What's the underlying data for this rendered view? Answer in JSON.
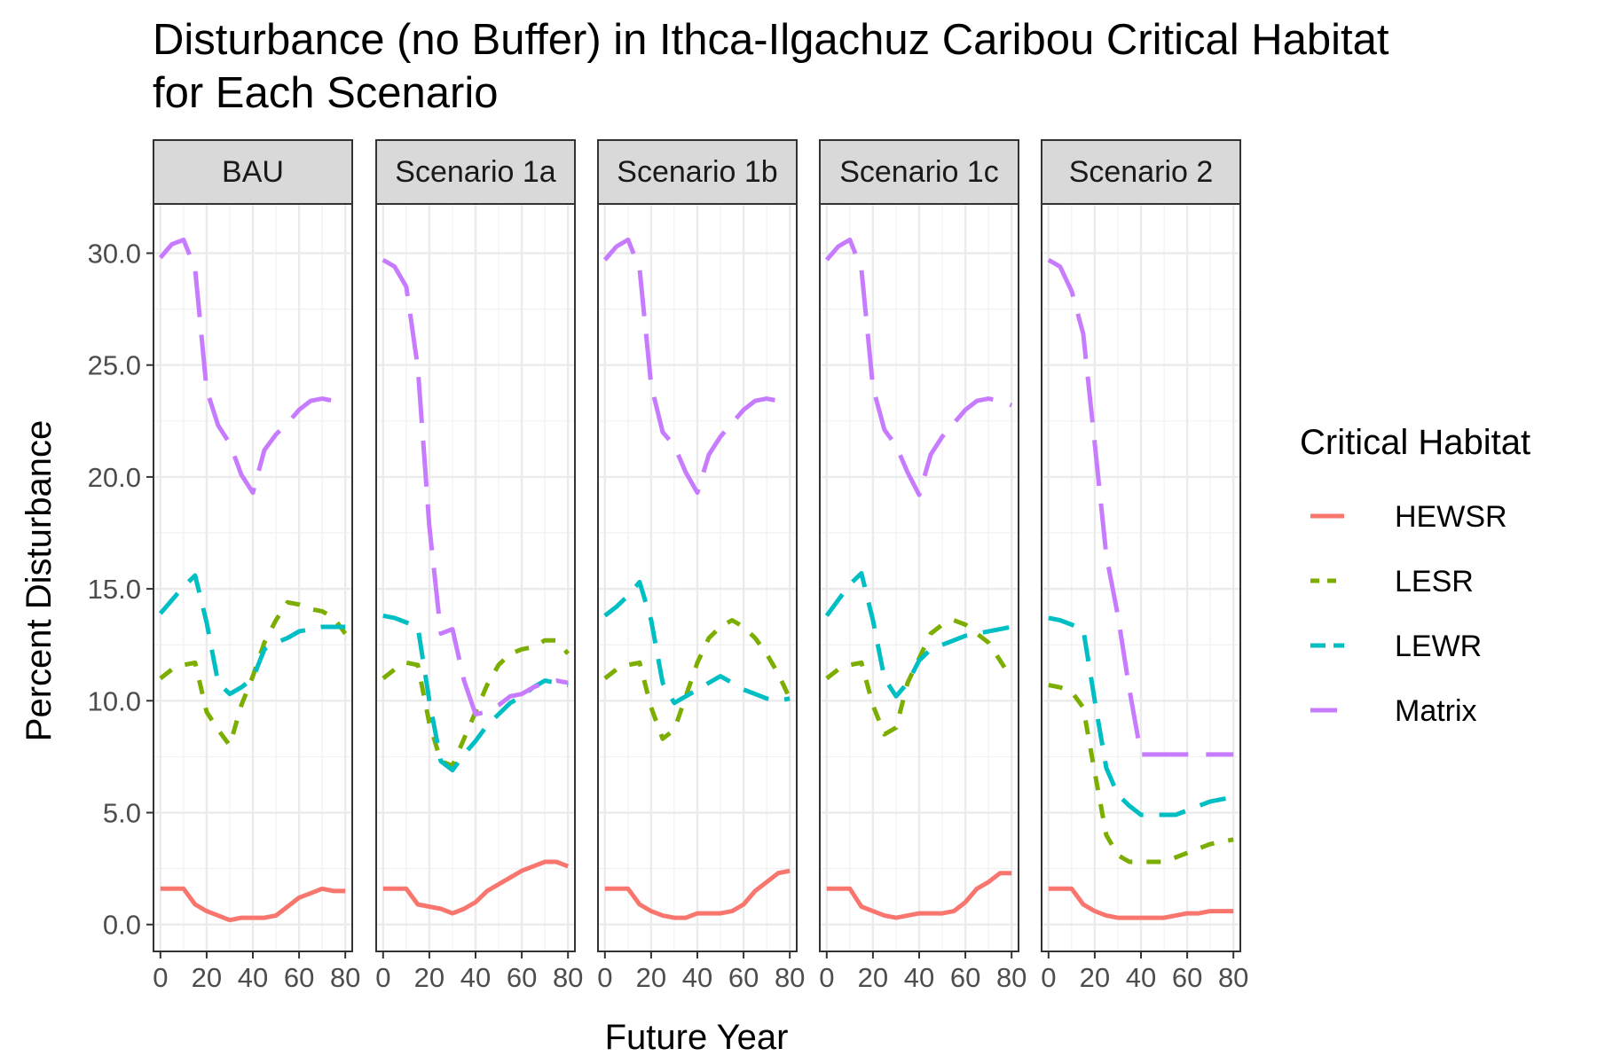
{
  "chart_data": {
    "type": "line",
    "title_line1": "Disturbance (no Buffer) in Ithca-Ilgachuz Caribou Critical Habitat",
    "title_line2": "for Each Scenario",
    "xlabel": "Future Year",
    "ylabel": "Percent Disturbance",
    "xlim": [
      -3,
      83
    ],
    "ylim": [
      -1.2,
      32.2
    ],
    "x_ticks": [
      0,
      20,
      40,
      60,
      80
    ],
    "x_tick_labels": [
      "0",
      "20",
      "40",
      "60",
      "80"
    ],
    "y_ticks": [
      0,
      5,
      10,
      15,
      20,
      25,
      30
    ],
    "y_tick_labels": [
      "0.0",
      "5.0",
      "10.0",
      "15.0",
      "20.0",
      "25.0",
      "30.0"
    ],
    "grid": true,
    "legend": {
      "title": "Critical Habitat",
      "placement": "right",
      "entries": [
        {
          "name": "HEWSR",
          "color": "#F8766D",
          "dash": "solid"
        },
        {
          "name": "LESR",
          "color": "#7CAE00",
          "dash": "dotted"
        },
        {
          "name": "LEWR",
          "color": "#00BFC4",
          "dash": "dashed"
        },
        {
          "name": "Matrix",
          "color": "#C77CFF",
          "dash": "longdash"
        }
      ]
    },
    "x": [
      0,
      5,
      10,
      15,
      20,
      25,
      30,
      35,
      40,
      45,
      50,
      55,
      60,
      65,
      70,
      75,
      80
    ],
    "facets": [
      {
        "label": "BAU",
        "series": [
          {
            "name": "HEWSR",
            "values": [
              1.6,
              1.6,
              1.6,
              0.9,
              0.6,
              0.4,
              0.2,
              0.3,
              0.3,
              0.3,
              0.4,
              0.8,
              1.2,
              1.4,
              1.6,
              1.5,
              1.5
            ]
          },
          {
            "name": "LESR",
            "values": [
              11.0,
              11.4,
              11.6,
              11.7,
              9.5,
              8.7,
              8.0,
              9.8,
              11.1,
              12.6,
              13.6,
              14.4,
              14.3,
              14.1,
              14.0,
              13.7,
              13.0
            ]
          },
          {
            "name": "LEWR",
            "values": [
              13.9,
              14.5,
              15.1,
              15.6,
              13.5,
              10.8,
              10.3,
              10.6,
              11.0,
              12.3,
              12.6,
              12.8,
              13.1,
              13.2,
              13.3,
              13.3,
              13.3
            ]
          },
          {
            "name": "Matrix",
            "values": [
              29.8,
              30.4,
              30.6,
              29.3,
              23.9,
              22.3,
              21.5,
              20.1,
              19.3,
              21.2,
              21.9,
              22.4,
              23.0,
              23.4,
              23.5,
              23.4,
              23.2
            ]
          }
        ]
      },
      {
        "label": "Scenario 1a",
        "series": [
          {
            "name": "HEWSR",
            "values": [
              1.6,
              1.6,
              1.6,
              0.9,
              0.8,
              0.7,
              0.5,
              0.7,
              1.0,
              1.5,
              1.8,
              2.1,
              2.4,
              2.6,
              2.8,
              2.8,
              2.6
            ]
          },
          {
            "name": "LESR",
            "values": [
              11.0,
              11.4,
              11.7,
              11.6,
              9.0,
              7.3,
              7.1,
              8.3,
              9.5,
              10.7,
              11.6,
              12.1,
              12.3,
              12.4,
              12.7,
              12.7,
              12.1
            ]
          },
          {
            "name": "LEWR",
            "values": [
              13.8,
              13.7,
              13.5,
              13.3,
              10.0,
              7.3,
              6.9,
              7.6,
              8.2,
              8.9,
              9.4,
              9.9,
              10.2,
              10.6,
              10.9,
              10.8,
              10.7
            ]
          },
          {
            "name": "Matrix",
            "values": [
              29.7,
              29.4,
              28.5,
              24.9,
              17.8,
              13.0,
              13.2,
              10.9,
              9.4,
              9.5,
              9.8,
              10.2,
              10.3,
              10.6,
              10.8,
              10.9,
              10.8
            ]
          }
        ]
      },
      {
        "label": "Scenario 1b",
        "series": [
          {
            "name": "HEWSR",
            "values": [
              1.6,
              1.6,
              1.6,
              0.9,
              0.6,
              0.4,
              0.3,
              0.3,
              0.5,
              0.5,
              0.5,
              0.6,
              0.9,
              1.5,
              1.9,
              2.3,
              2.4
            ]
          },
          {
            "name": "LESR",
            "values": [
              11.0,
              11.4,
              11.6,
              11.7,
              9.7,
              8.3,
              8.7,
              10.2,
              11.7,
              12.8,
              13.3,
              13.6,
              13.3,
              12.8,
              12.1,
              11.2,
              10.1
            ]
          },
          {
            "name": "LEWR",
            "values": [
              13.8,
              14.2,
              14.7,
              15.3,
              13.6,
              10.8,
              9.9,
              10.2,
              10.5,
              10.8,
              11.1,
              10.8,
              10.5,
              10.3,
              10.1,
              10.0,
              10.1
            ]
          },
          {
            "name": "Matrix",
            "values": [
              29.7,
              30.3,
              30.6,
              29.3,
              24.1,
              22.0,
              21.4,
              20.2,
              19.3,
              21.0,
              21.8,
              22.4,
              23.0,
              23.4,
              23.5,
              23.4,
              23.2
            ]
          }
        ]
      },
      {
        "label": "Scenario 1c",
        "series": [
          {
            "name": "HEWSR",
            "values": [
              1.6,
              1.6,
              1.6,
              0.8,
              0.6,
              0.4,
              0.3,
              0.4,
              0.5,
              0.5,
              0.5,
              0.6,
              1.0,
              1.6,
              1.9,
              2.3,
              2.3
            ]
          },
          {
            "name": "LESR",
            "values": [
              11.0,
              11.4,
              11.6,
              11.7,
              9.8,
              8.5,
              8.8,
              10.8,
              11.9,
              13.0,
              13.4,
              13.6,
              13.4,
              13.0,
              12.6,
              11.8,
              11.0
            ]
          },
          {
            "name": "LEWR",
            "values": [
              13.8,
              14.5,
              15.2,
              15.7,
              13.6,
              11.0,
              10.2,
              10.8,
              11.8,
              12.3,
              12.5,
              12.7,
              12.9,
              13.0,
              13.1,
              13.2,
              13.3
            ]
          },
          {
            "name": "Matrix",
            "values": [
              29.7,
              30.3,
              30.6,
              29.3,
              24.0,
              22.1,
              21.4,
              20.2,
              19.2,
              21.0,
              21.8,
              22.4,
              23.0,
              23.4,
              23.5,
              23.4,
              23.2
            ]
          }
        ]
      },
      {
        "label": "Scenario 2",
        "series": [
          {
            "name": "HEWSR",
            "values": [
              1.6,
              1.6,
              1.6,
              0.9,
              0.6,
              0.4,
              0.3,
              0.3,
              0.3,
              0.3,
              0.3,
              0.4,
              0.5,
              0.5,
              0.6,
              0.6,
              0.6
            ]
          },
          {
            "name": "LESR",
            "values": [
              10.7,
              10.6,
              10.4,
              9.7,
              6.8,
              4.0,
              3.1,
              2.8,
              2.8,
              2.8,
              2.8,
              3.0,
              3.2,
              3.4,
              3.6,
              3.7,
              3.8
            ]
          },
          {
            "name": "LEWR",
            "values": [
              13.7,
              13.6,
              13.4,
              13.2,
              10.0,
              7.0,
              5.8,
              5.3,
              4.9,
              4.9,
              4.9,
              4.9,
              5.1,
              5.3,
              5.5,
              5.6,
              5.7
            ]
          },
          {
            "name": "Matrix",
            "values": [
              29.7,
              29.4,
              28.3,
              26.4,
              21.5,
              16.5,
              13.8,
              10.5,
              7.6,
              7.6,
              7.6,
              7.6,
              7.6,
              7.6,
              7.6,
              7.6,
              7.6
            ]
          }
        ]
      }
    ]
  }
}
